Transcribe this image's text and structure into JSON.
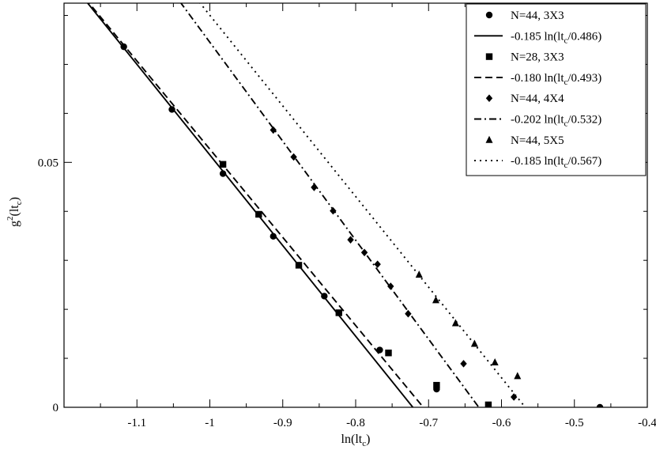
{
  "chart_data": {
    "type": "scatter",
    "title": "",
    "xlabel_main": "ln(lt",
    "xlabel_sub": "c",
    "xlabel_end": ")",
    "ylabel_main": "g",
    "ylabel_sup": "2",
    "ylabel_mid": "(lt",
    "ylabel_sub": "c",
    "ylabel_end": ")",
    "xlim": [
      -1.2,
      -0.4
    ],
    "ylim": [
      0,
      0.0825
    ],
    "xticks": [
      {
        "v": -1.1,
        "label": "-1.1"
      },
      {
        "v": -1.0,
        "label": "-1"
      },
      {
        "v": -0.9,
        "label": "-0.9"
      },
      {
        "v": -0.8,
        "label": "-0.8"
      },
      {
        "v": -0.7,
        "label": "-0.7"
      },
      {
        "v": -0.6,
        "label": "-0.6"
      },
      {
        "v": -0.5,
        "label": "-0.5"
      },
      {
        "v": -0.4,
        "label": "-0.4"
      }
    ],
    "yticks": [
      {
        "v": 0,
        "label": "0"
      },
      {
        "v": 0.05,
        "label": "0.05"
      }
    ],
    "y_minor_ticks": [
      0.01,
      0.02,
      0.03,
      0.04,
      0.06,
      0.07,
      0.08
    ],
    "x_minor_step": 0.05,
    "grid": false,
    "legend_position": "top-right",
    "series": [
      {
        "name": "N=44, 3X3",
        "kind": "points",
        "marker": "circle",
        "x": [
          -1.118,
          -1.052,
          -0.982,
          -0.913,
          -0.843,
          -0.767,
          -0.689,
          -0.465
        ],
        "y": [
          0.0736,
          0.0608,
          0.0477,
          0.0349,
          0.0227,
          0.0117,
          0.0037,
          0.0
        ]
      },
      {
        "name": "-0.185 ln(lt",
        "name_sub": "c",
        "name_end": "/0.486)",
        "kind": "line",
        "dash": "solid",
        "a": -0.185,
        "c": 0.486
      },
      {
        "name": "N=28, 3X3",
        "kind": "points",
        "marker": "square",
        "x": [
          -0.982,
          -0.933,
          -0.878,
          -0.823,
          -0.755,
          -0.689,
          -0.618
        ],
        "y": [
          0.0496,
          0.0394,
          0.029,
          0.0193,
          0.0111,
          0.0045,
          0.0005
        ]
      },
      {
        "name": "-0.180 ln(lt",
        "name_sub": "c",
        "name_end": "/0.493)",
        "kind": "line",
        "dash": "dashed",
        "a": -0.18,
        "c": 0.493
      },
      {
        "name": "N=44, 4X4",
        "kind": "points",
        "marker": "diamond",
        "x": [
          -0.913,
          -0.885,
          -0.857,
          -0.831,
          -0.807,
          -0.788,
          -0.77,
          -0.752,
          -0.728,
          -0.652,
          -0.583
        ],
        "y": [
          0.0566,
          0.0511,
          0.0449,
          0.0401,
          0.0342,
          0.0316,
          0.0292,
          0.0247,
          0.0191,
          0.0089,
          0.0021
        ]
      },
      {
        "name": "-0.202 ln(lt",
        "name_sub": "c",
        "name_end": "/0.532)",
        "kind": "line",
        "dash": "dashdot",
        "a": -0.202,
        "c": 0.532
      },
      {
        "name": "N=44, 5X5",
        "kind": "points",
        "marker": "triangle",
        "x": [
          -0.713,
          -0.69,
          -0.663,
          -0.637,
          -0.609,
          -0.578
        ],
        "y": [
          0.0271,
          0.0219,
          0.0172,
          0.013,
          0.0092,
          0.0064
        ]
      },
      {
        "name": "-0.185 ln(lt",
        "name_sub": "c",
        "name_end": "/0.567)",
        "kind": "line",
        "dash": "dotted",
        "a": -0.185,
        "c": 0.567
      }
    ]
  }
}
